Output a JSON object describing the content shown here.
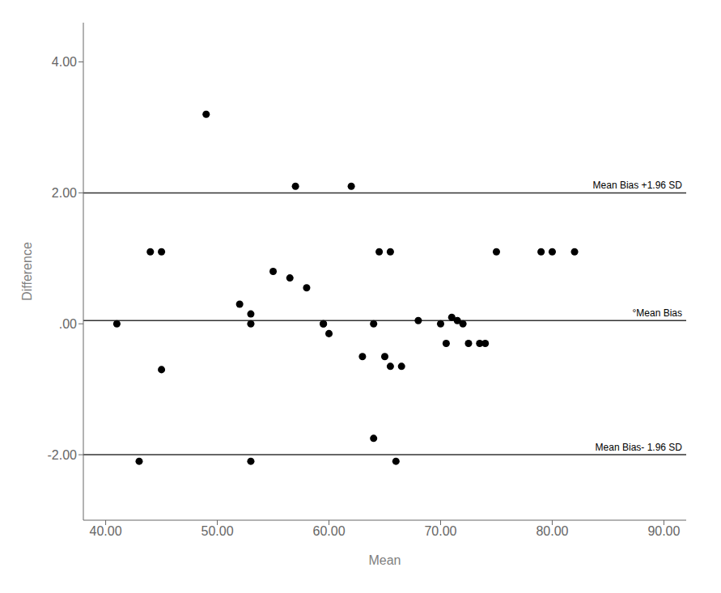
{
  "chart_data": {
    "type": "scatter",
    "x": [
      41.0,
      44.0,
      45.0,
      45.0,
      49.0,
      57.0,
      52.0,
      53.0,
      53.0,
      55.0,
      56.5,
      58.0,
      59.5,
      59.5,
      60.0,
      62.0,
      63.0,
      64.0,
      64.5,
      65.5,
      65.0,
      65.5,
      66.5,
      64.0,
      68.0,
      70.0,
      70.5,
      71.0,
      71.5,
      72.0,
      72.5,
      73.5,
      74.0,
      75.0,
      79.0,
      80.0,
      82.0,
      43.0,
      53.0,
      66.0
    ],
    "values": [
      0.0,
      1.1,
      1.1,
      -0.7,
      3.2,
      2.1,
      0.3,
      0.15,
      0.0,
      0.8,
      0.7,
      0.55,
      0.0,
      0.0,
      -0.15,
      2.1,
      -0.5,
      0.0,
      1.1,
      1.1,
      -0.5,
      -0.65,
      -0.65,
      -1.75,
      0.05,
      0.0,
      -0.3,
      0.1,
      0.05,
      0.0,
      -0.3,
      -0.3,
      -0.3,
      1.1,
      1.1,
      1.1,
      1.1,
      -2.1,
      -2.1,
      -2.1
    ],
    "xlabel": "Mean",
    "ylabel": "Difference",
    "xlim": [
      38.0,
      92.0
    ],
    "ylim": [
      -3.0,
      4.6
    ],
    "xticks": [
      {
        "value": 40,
        "label": "40.00"
      },
      {
        "value": 50,
        "label": "50.00"
      },
      {
        "value": 60,
        "label": "60.00"
      },
      {
        "value": 70,
        "label": "70.00"
      },
      {
        "value": 80,
        "label": "80.00"
      },
      {
        "value": 90,
        "label": "90.00"
      }
    ],
    "yticks": [
      {
        "value": -2.0,
        "label": "-2.00"
      },
      {
        "value": 0.0,
        "label": ".00"
      },
      {
        "value": 2.0,
        "label": "2.00"
      },
      {
        "value": 4.0,
        "label": "4.00"
      }
    ],
    "reference_lines": [
      {
        "y": 2.0,
        "label": "Mean Bias +1.96 SD"
      },
      {
        "y": 0.05,
        "label": "°Mean Bias"
      },
      {
        "y": -2.0,
        "label": "Mean Bias- 1.96 SD"
      }
    ],
    "grid": false
  }
}
